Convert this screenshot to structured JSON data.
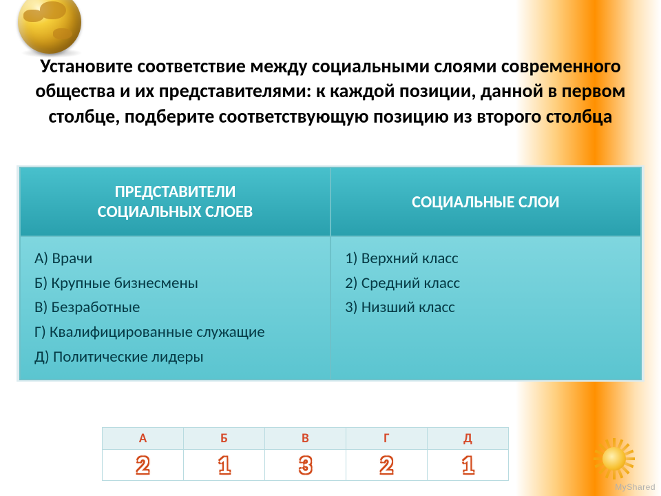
{
  "title": "Установите соответствие между социальными слоями современного общества и их представителями: к каждой позиции, данной в первом столбце, подберите соответствующую позицию из второго столбца",
  "table": {
    "header_left": "ПРЕДСТАВИТЕЛИ\nСОЦИАЛЬНЫХ СЛОЕВ",
    "header_right": "СОЦИАЛЬНЫЕ СЛОИ",
    "left_items": "А) Врачи\nБ) Крупные бизнесмены\nВ) Безработные\nГ)  Квалифицированные служащие\nД) Политические лидеры",
    "right_items": "1)   Верхний класс\n2)   Средний класс\n3)   Низший класс"
  },
  "answers": {
    "letters": [
      "А",
      "Б",
      "В",
      "Г",
      "Д"
    ],
    "numbers": [
      "2",
      "1",
      "3",
      "2",
      "1"
    ]
  },
  "colors": {
    "table_header_bg": "#2aa0ae",
    "table_cell_bg": "#5bc5d0",
    "table_border": "#6dc1c9",
    "answer_letter_color": "#d64a2a",
    "answer_number_outline": "#d24a1a",
    "title_color": "#000000",
    "globe_gold": "#d29a1a",
    "sun_orange": "#f0a810"
  },
  "typography": {
    "title_fontsize": 28,
    "table_header_fontsize": 24,
    "table_cell_fontsize": 23,
    "answer_letter_fontsize": 19,
    "answer_number_fontsize": 36,
    "font_family": "Calibri"
  },
  "watermark": "MyShared"
}
